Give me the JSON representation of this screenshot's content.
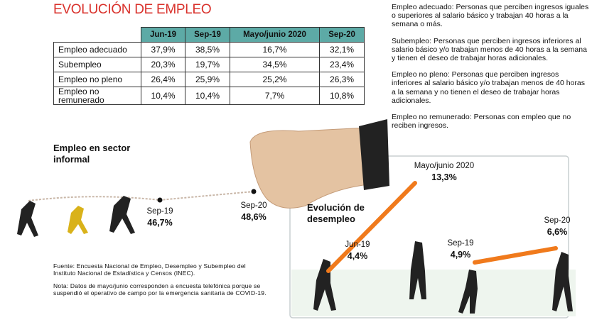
{
  "title": "EVOLUCIÓN DE EMPLEO",
  "table": {
    "header": [
      "Jun-19",
      "Sep-19",
      "Mayo/junio 2020",
      "Sep-20"
    ],
    "rows": [
      [
        "Empleo adecuado",
        "37,9%",
        "38,5%",
        "16,7%",
        "32,1%"
      ],
      [
        "Subempleo",
        "20,3%",
        "19,7%",
        "34,5%",
        "23,4%"
      ],
      [
        "Empleo no pleno",
        "26,4%",
        "25,9%",
        "25,2%",
        "26,3%"
      ],
      [
        "Empleo no remunerado",
        "10,4%",
        "10,4%",
        "7,7%",
        "10,8%"
      ]
    ]
  },
  "definitions": [
    "Empleo adecuado: Personas que perciben ingresos iguales o superiores al salario básico y trabajan 40 horas a la semana o más.",
    "Subempleo: Personas que perciben ingresos inferiores al salario básico y/o trabajan menos de 40 horas a la semana y tienen el deseo de trabajar horas adicionales.",
    "Empleo no pleno: Personas que perciben ingresos inferiores al salario básico y/o trabajan menos de 40 horas a la semana y no tienen el deseo de trabajar horas adicionales.",
    "Empleo no remunerado: Personas con empleo que no reciben ingresos."
  ],
  "informal": {
    "title": "Empleo en sector informal",
    "points": [
      {
        "label": "Sep-19",
        "value": "46,7%"
      },
      {
        "label": "Sep-20",
        "value": "48,6%"
      }
    ]
  },
  "desempleo": {
    "title": "Evolución de desempleo",
    "points": [
      {
        "label": "Jun-19",
        "value": "4,4%"
      },
      {
        "label": "Mayo/junio 2020",
        "value": "13,3%"
      },
      {
        "label": "Sep-19",
        "value": "4,9%"
      },
      {
        "label": "Sep-20",
        "value": "6,6%"
      }
    ]
  },
  "source": "Fuente: Encuesta Nacional de Empleo, Desempleo y Subempleo del Instituto Nacional de Estadística y Censos (INEC).",
  "note": "Nota: Datos de mayo/junio corresponden a encuesta telefónica porque se suspendió el operativo de campo por la emergencia sanitaria de COVID-19."
}
